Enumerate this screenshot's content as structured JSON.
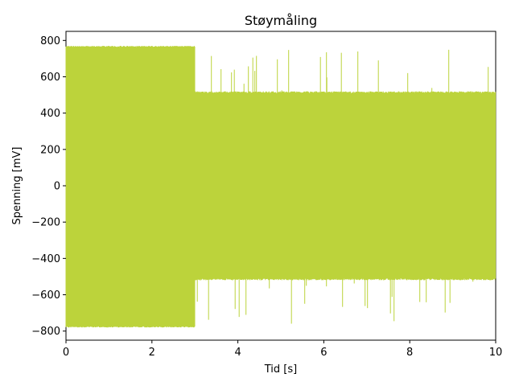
{
  "chart_data": {
    "type": "line",
    "title": "Støymåling",
    "xlabel": "Tid [s]",
    "ylabel": "Spenning [mV]",
    "xlim": [
      0,
      10
    ],
    "ylim": [
      -850,
      850
    ],
    "x_ticks": [
      0,
      2,
      4,
      6,
      8,
      10
    ],
    "y_ticks": [
      -800,
      -600,
      -400,
      -200,
      0,
      200,
      400,
      600,
      800
    ],
    "grid": false,
    "series": [
      {
        "color": "#bcd33b",
        "segments": [
          {
            "x_start": 0,
            "x_end": 3.0,
            "amplitude_low": -780,
            "amplitude_high": 770
          },
          {
            "x_start": 3.0,
            "x_end": 10,
            "amplitude_low": -520,
            "amplitude_high": 520,
            "spike_low": -780,
            "spike_high": 770
          }
        ]
      }
    ]
  }
}
